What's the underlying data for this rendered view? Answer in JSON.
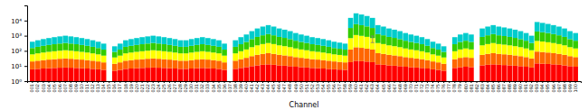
{
  "chart_data": {
    "type": "bar",
    "stacked": true,
    "log": "y",
    "grid": false,
    "xlabel": "Channel",
    "ylim": [
      1,
      100000
    ],
    "yticks": [
      {
        "value": 1,
        "label": "10⁰"
      },
      {
        "value": 10,
        "label": "10¹"
      },
      {
        "value": 100,
        "label": "10²"
      },
      {
        "value": 1000,
        "label": "10³"
      },
      {
        "value": 10000,
        "label": "10⁴"
      }
    ],
    "categories": [
      "001",
      "002",
      "003",
      "004",
      "005",
      "006",
      "007",
      "008",
      "009",
      "010",
      "011",
      "012",
      "013",
      "014",
      "015",
      "016",
      "017",
      "018",
      "019",
      "020",
      "021",
      "022",
      "023",
      "024",
      "025",
      "026",
      "027",
      "028",
      "029",
      "030",
      "031",
      "032",
      "033",
      "034",
      "035",
      "036",
      "037",
      "038",
      "039",
      "040",
      "041",
      "042",
      "043",
      "044",
      "045",
      "046",
      "047",
      "048",
      "049",
      "050",
      "051",
      "052",
      "053",
      "054",
      "055",
      "056",
      "057",
      "058",
      "059",
      "060",
      "061",
      "062",
      "063",
      "064",
      "065",
      "066",
      "067",
      "068",
      "069",
      "070",
      "071",
      "072",
      "073",
      "074",
      "075",
      "076",
      "077",
      "078",
      "079",
      "080",
      "081",
      "082",
      "083",
      "084",
      "085",
      "086",
      "087",
      "088",
      "089",
      "090",
      "091",
      "092",
      "093",
      "094",
      "095",
      "096",
      "097",
      "098",
      "099",
      "100"
    ],
    "series": [
      {
        "color": "#ff0000",
        "values": [
          5.0342,
          5.4519,
          5.8147,
          6.1372,
          6.4289,
          6.6961,
          6.9433,
          6.6961,
          6.4289,
          6.1372,
          5.8147,
          5.4519,
          5.0342,
          4.5352,
          null,
          3.9013,
          4.5352,
          5.4519,
          5.8147,
          6.1372,
          6.4289,
          6.6961,
          6.9433,
          6.6961,
          6.4289,
          6.1372,
          5.8147,
          5.4519,
          5.4519,
          5.8147,
          6.1372,
          6.4289,
          6.1372,
          5.8147,
          5.4519,
          4.5352,
          null,
          5.4519,
          6.4289,
          7.3898,
          8.7793,
          10.0443,
          11.0398,
          11.8733,
          11.0398,
          10.0443,
          9.4564,
          8.7793,
          7.9707,
          7.3898,
          6.9433,
          6.4289,
          6.1372,
          5.8147,
          5.4519,
          5.0342,
          4.7972,
          4.5352,
          16.8989,
          21.0362,
          19.8633,
          18.5123,
          16.8989,
          11.8733,
          11.0398,
          10.0443,
          9.4564,
          8.7793,
          7.9707,
          7.3898,
          6.9433,
          6.4289,
          5.8147,
          5.0342,
          4.5352,
          3.9013,
          null,
          6.4289,
          7.3898,
          7.9707,
          7.3898,
          null,
          10.0443,
          11.0398,
          11.8733,
          11.0398,
          10.567,
          10.0443,
          9.4564,
          8.7793,
          7.9707,
          6.9433,
          13.8227,
          13.2406,
          12.5971,
          11.8733,
          11.0398,
          10.0443,
          8.7793,
          7.9707
        ]
      },
      {
        "color": "#ff6600",
        "values": [
          13.9658,
          15.9088,
          17.6802,
          19.3203,
          20.8554,
          22.3039,
          23.6795,
          22.3039,
          20.8554,
          19.3203,
          17.6802,
          15.9088,
          13.9658,
          11.7853,
          null,
          9.2408,
          11.7853,
          15.9088,
          17.6802,
          19.3203,
          20.8554,
          22.3039,
          23.6795,
          22.3039,
          20.8554,
          19.3203,
          17.6802,
          15.9088,
          15.9088,
          17.6802,
          19.3203,
          20.8554,
          19.3203,
          17.6802,
          15.9088,
          11.7853,
          null,
          15.9088,
          20.8554,
          26.2512,
          34.9421,
          43.728,
          51.2058,
          57.8374,
          51.2058,
          43.728,
          39.5436,
          34.9421,
          29.7591,
          26.2512,
          23.6795,
          20.8554,
          19.3203,
          17.6802,
          15.9088,
          13.9658,
          12.9111,
          11.7853,
          104.5756,
          151.1689,
          137.2506,
          121.9091,
          104.5756,
          57.8374,
          51.2058,
          43.728,
          39.5436,
          34.9421,
          29.7591,
          26.2512,
          23.6795,
          20.8554,
          17.6802,
          13.9658,
          11.7853,
          9.2408,
          null,
          20.8554,
          26.2512,
          29.7591,
          26.2512,
          null,
          43.728,
          51.2058,
          57.8374,
          51.2058,
          47.5938,
          43.728,
          39.5436,
          34.9421,
          29.7591,
          23.6795,
          74.62,
          69.4254,
          63.8626,
          57.8374,
          51.2058,
          43.728,
          34.9421,
          29.7591
        ]
      },
      {
        "color": "#ffff00",
        "values": [
          38.803,
          46.077,
          52.977,
          59.576,
          65.927,
          72.067,
          78.025,
          72.067,
          65.927,
          59.576,
          52.977,
          46.077,
          38.803,
          31.035,
          null,
          22.561,
          31.035,
          46.077,
          52.977,
          59.576,
          65.927,
          72.067,
          78.025,
          72.067,
          65.927,
          59.576,
          52.977,
          46.077,
          46.077,
          52.977,
          59.576,
          65.927,
          59.576,
          52.977,
          46.077,
          31.035,
          null,
          46.077,
          65.927,
          89.479,
          130.95,
          176.67,
          218.204,
          256.856,
          218.204,
          176.67,
          154.456,
          130.95,
          105.728,
          89.479,
          78.025,
          65.927,
          59.576,
          52.977,
          46.077,
          38.803,
          34.991,
          31.035,
          568.947,
          934.546,
          820.472,
          699.394,
          568.947,
          256.856,
          218.204,
          176.67,
          154.456,
          130.95,
          105.728,
          89.479,
          78.025,
          65.927,
          52.977,
          38.803,
          31.035,
          22.561,
          null,
          65.927,
          89.479,
          105.728,
          89.479,
          null,
          176.67,
          218.204,
          256.856,
          218.204,
          197.858,
          176.67,
          154.456,
          130.95,
          105.728,
          78.025,
          361.479,
          328.116,
          293.343,
          256.856,
          218.204,
          176.67,
          130.95,
          105.728
        ]
      },
      {
        "color": "#33cc00",
        "values": [
          94.563,
          116.546,
          138.127,
          159.371,
          180.322,
          201.018,
          221.483,
          201.018,
          180.322,
          159.371,
          138.127,
          116.546,
          94.563,
          72.088,
          null,
          48.974,
          72.088,
          116.546,
          138.127,
          159.371,
          180.322,
          201.018,
          221.483,
          201.018,
          180.322,
          159.371,
          138.127,
          116.546,
          116.546,
          138.127,
          159.371,
          180.322,
          159.371,
          138.127,
          116.546,
          72.088,
          null,
          116.546,
          180.322,
          261.813,
          417.07,
          601.82,
          779.585,
          952.212,
          779.585,
          601.82,
          510.486,
          417.07,
          321.038,
          261.813,
          221.483,
          180.322,
          159.371,
          138.127,
          116.546,
          94.563,
          83.394,
          72.088,
          2529.024,
          4657.016,
          3967.595,
          3259.952,
          2529.024,
          952.212,
          779.585,
          601.82,
          510.486,
          417.07,
          321.038,
          261.813,
          221.483,
          180.322,
          138.127,
          94.563,
          72.088,
          48.974,
          null,
          180.322,
          261.813,
          321.038,
          261.813,
          null,
          601.82,
          779.585,
          952.212,
          779.585,
          691.436,
          601.82,
          510.486,
          417.07,
          321.038,
          221.483,
          1448.388,
          1286,
          1120.778,
          952.212,
          779.585,
          601.82,
          417.07,
          321.038
        ]
      },
      {
        "color": "#00cccc",
        "values": [
          246.634,
          315.016,
          384.401,
          454.596,
          525.467,
          596.915,
          668.869,
          596.915,
          525.467,
          454.596,
          384.401,
          315.016,
          246.634,
          179.557,
          null,
          114.323,
          179.557,
          315.016,
          384.401,
          454.596,
          525.467,
          596.915,
          668.869,
          596.915,
          525.467,
          454.596,
          384.401,
          315.016,
          315.016,
          384.401,
          454.596,
          525.467,
          454.596,
          384.401,
          315.016,
          179.557,
          null,
          315.016,
          525.467,
          814.067,
          1407.259,
          2166.738,
          2938.965,
          3720.221,
          2938.965,
          2166.738,
          1785.058,
          1407.259,
          1034.504,
          814.067,
          668.869,
          525.467,
          454.596,
          384.401,
          315.016,
          246.634,
          212.907,
          179.557,
          11779.555,
          24235.233,
          20053.819,
          15899.233,
          11779.555,
          3720.221,
          2938.965,
          2166.738,
          1785.058,
          1407.259,
          1034.504,
          814.067,
          668.869,
          525.467,
          384.401,
          246.634,
          179.557,
          114.323,
          null,
          525.467,
          814.067,
          1034.504,
          814.067,
          null,
          2166.738,
          2938.965,
          3720.221,
          2938.965,
          2551.545,
          2166.738,
          1785.058,
          1407.259,
          1034.504,
          668.869,
          6100.69,
          5302.218,
          4508.419,
          3720.221,
          2938.965,
          2166.738,
          1407.259,
          1034.504
        ]
      }
    ],
    "errorbar": {
      "category": "063",
      "value": 500,
      "minus": 150,
      "plus": 450
    }
  }
}
